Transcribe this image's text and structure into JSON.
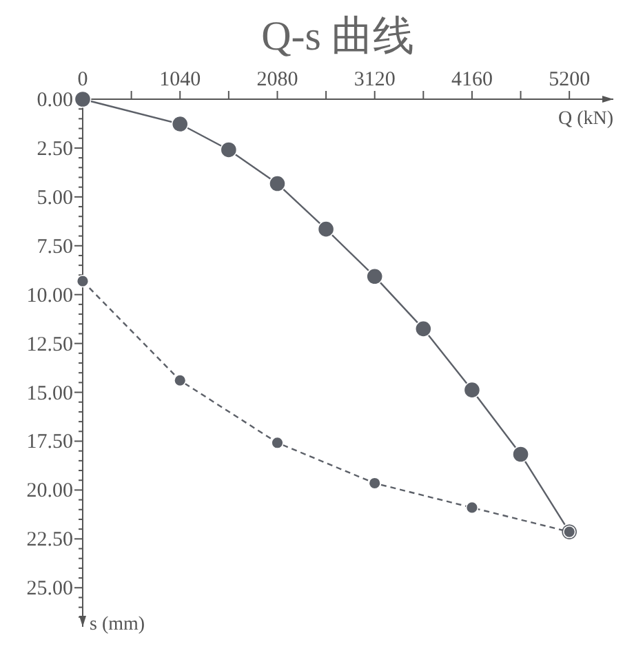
{
  "chart_data": {
    "type": "line",
    "title": "Q-s  曲线",
    "xlabel": "Q (kN)",
    "ylabel": "s (mm)",
    "xlim": [
      0,
      5670
    ],
    "ylim": [
      27,
      0
    ],
    "xticks": [
      0,
      {
        "value": 520,
        "label": null
      },
      1040,
      {
        "value": 1560,
        "label": null
      },
      2080,
      {
        "value": 2600,
        "label": null
      },
      3120,
      {
        "value": 3640,
        "label": null
      },
      4160,
      {
        "value": 4680,
        "label": null
      },
      5200
    ],
    "yticks": [
      {
        "value": 0,
        "label": "0.00"
      },
      {
        "value": 0.5,
        "label": null
      },
      {
        "value": 1,
        "label": null
      },
      {
        "value": 1.5,
        "label": null
      },
      {
        "value": 2,
        "label": null
      },
      {
        "value": 2.5,
        "label": "2.50"
      },
      {
        "value": 3,
        "label": null
      },
      {
        "value": 3.5,
        "label": null
      },
      {
        "value": 4,
        "label": null
      },
      {
        "value": 4.5,
        "label": null
      },
      {
        "value": 5,
        "label": "5.00"
      },
      {
        "value": 5.5,
        "label": null
      },
      {
        "value": 6,
        "label": null
      },
      {
        "value": 6.5,
        "label": null
      },
      {
        "value": 7,
        "label": null
      },
      {
        "value": 7.5,
        "label": "7.50"
      },
      {
        "value": 8,
        "label": null
      },
      {
        "value": 8.5,
        "label": null
      },
      {
        "value": 9,
        "label": null
      },
      {
        "value": 9.5,
        "label": null
      },
      {
        "value": 10,
        "label": "10.00"
      },
      {
        "value": 10.5,
        "label": null
      },
      {
        "value": 11,
        "label": null
      },
      {
        "value": 11.5,
        "label": null
      },
      {
        "value": 12,
        "label": null
      },
      {
        "value": 12.5,
        "label": "12.50"
      },
      {
        "value": 13,
        "label": null
      },
      {
        "value": 13.5,
        "label": null
      },
      {
        "value": 14,
        "label": null
      },
      {
        "value": 14.5,
        "label": null
      },
      {
        "value": 15,
        "label": "15.00"
      },
      {
        "value": 15.5,
        "label": null
      },
      {
        "value": 16,
        "label": null
      },
      {
        "value": 16.5,
        "label": null
      },
      {
        "value": 17,
        "label": null
      },
      {
        "value": 17.5,
        "label": "17.50"
      },
      {
        "value": 18,
        "label": null
      },
      {
        "value": 18.5,
        "label": null
      },
      {
        "value": 19,
        "label": null
      },
      {
        "value": 19.5,
        "label": null
      },
      {
        "value": 20,
        "label": "20.00"
      },
      {
        "value": 20.5,
        "label": null
      },
      {
        "value": 21,
        "label": null
      },
      {
        "value": 21.5,
        "label": null
      },
      {
        "value": 22,
        "label": null
      },
      {
        "value": 22.5,
        "label": "22.50"
      },
      {
        "value": 23,
        "label": null
      },
      {
        "value": 23.5,
        "label": null
      },
      {
        "value": 24,
        "label": null
      },
      {
        "value": 24.5,
        "label": null
      },
      {
        "value": 25,
        "label": "25.00"
      },
      {
        "value": 25.5,
        "label": null
      },
      {
        "value": 26,
        "label": null
      },
      {
        "value": 26.5,
        "label": null
      }
    ],
    "marker": "circle",
    "series": [
      {
        "color": "#5c6068",
        "line_style": "solid",
        "x": [
          0,
          1040,
          1560,
          2080,
          2600,
          3120,
          3640,
          4160,
          4680,
          5200
        ],
        "values": [
          0,
          1.27,
          2.59,
          4.32,
          6.65,
          9.07,
          11.75,
          14.88,
          18.17,
          22.14
        ]
      },
      {
        "color": "#5c6068",
        "line_style": "dashed",
        "x": [
          0,
          1040,
          2080,
          3120,
          4160,
          5200
        ],
        "values": [
          9.31,
          14.39,
          17.58,
          19.65,
          20.9,
          22.14
        ]
      }
    ]
  }
}
